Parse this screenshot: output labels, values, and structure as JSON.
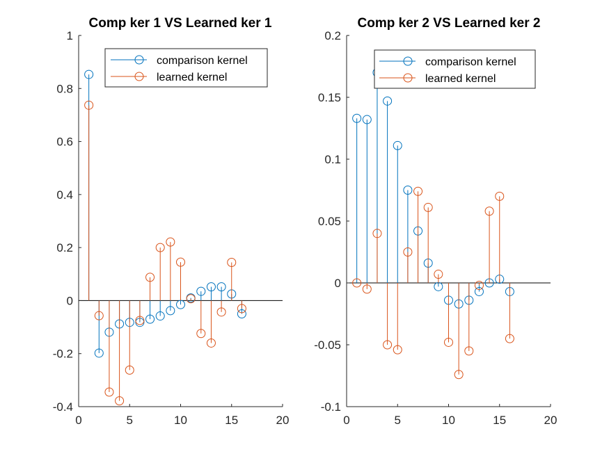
{
  "chart_data": [
    {
      "type": "stem",
      "title": "Comp ker 1  VS Learned ker 1",
      "xlabel": "",
      "ylabel": "",
      "xlim": [
        0,
        20
      ],
      "ylim": [
        -0.4,
        1
      ],
      "xticks": [
        "0",
        "5",
        "10",
        "15",
        "20"
      ],
      "yticks": [
        "-0.4",
        "-0.2",
        "0",
        "0.2",
        "0.4",
        "0.6",
        "0.8",
        "1"
      ],
      "legend_position": "top-right",
      "grid": false,
      "series": [
        {
          "name": "comparison kernel",
          "color": "#0072BD",
          "x": [
            1,
            2,
            3,
            4,
            5,
            6,
            7,
            8,
            9,
            10,
            11,
            12,
            13,
            14,
            15,
            16
          ],
          "values": [
            0.853,
            -0.198,
            -0.119,
            -0.088,
            -0.082,
            -0.082,
            -0.07,
            -0.058,
            -0.038,
            -0.015,
            0.01,
            0.035,
            0.052,
            0.052,
            0.025,
            -0.05
          ]
        },
        {
          "name": "learned kernel",
          "color": "#D95319",
          "x": [
            1,
            2,
            3,
            4,
            5,
            6,
            7,
            8,
            9,
            10,
            11,
            12,
            13,
            14,
            15,
            16
          ],
          "values": [
            0.737,
            -0.057,
            -0.345,
            -0.378,
            -0.262,
            -0.075,
            0.088,
            0.2,
            0.221,
            0.145,
            0.007,
            -0.124,
            -0.16,
            -0.043,
            0.144,
            -0.03
          ]
        }
      ]
    },
    {
      "type": "stem",
      "title": "Comp ker 2  VS Learned ker 2",
      "xlabel": "",
      "ylabel": "",
      "xlim": [
        0,
        20
      ],
      "ylim": [
        -0.1,
        0.2
      ],
      "xticks": [
        "0",
        "5",
        "10",
        "15",
        "20"
      ],
      "yticks": [
        "-0.1",
        "-0.05",
        "0",
        "0.05",
        "0.1",
        "0.15",
        "0.2"
      ],
      "legend_position": "top-right",
      "grid": false,
      "series": [
        {
          "name": "comparison kernel",
          "color": "#0072BD",
          "x": [
            1,
            2,
            3,
            4,
            5,
            6,
            7,
            8,
            9,
            10,
            11,
            12,
            13,
            14,
            15,
            16
          ],
          "values": [
            0.133,
            0.132,
            0.17,
            0.147,
            0.111,
            0.075,
            0.042,
            0.016,
            -0.003,
            -0.014,
            -0.017,
            -0.014,
            -0.007,
            0.0,
            0.003,
            -0.007
          ]
        },
        {
          "name": "learned kernel",
          "color": "#D95319",
          "x": [
            1,
            2,
            3,
            4,
            5,
            6,
            7,
            8,
            9,
            10,
            11,
            12,
            13,
            14,
            15,
            16
          ],
          "values": [
            0.0,
            -0.005,
            0.04,
            -0.05,
            -0.054,
            0.025,
            0.074,
            0.061,
            0.007,
            -0.048,
            -0.074,
            -0.055,
            -0.002,
            0.058,
            0.07,
            -0.045
          ]
        }
      ]
    }
  ]
}
